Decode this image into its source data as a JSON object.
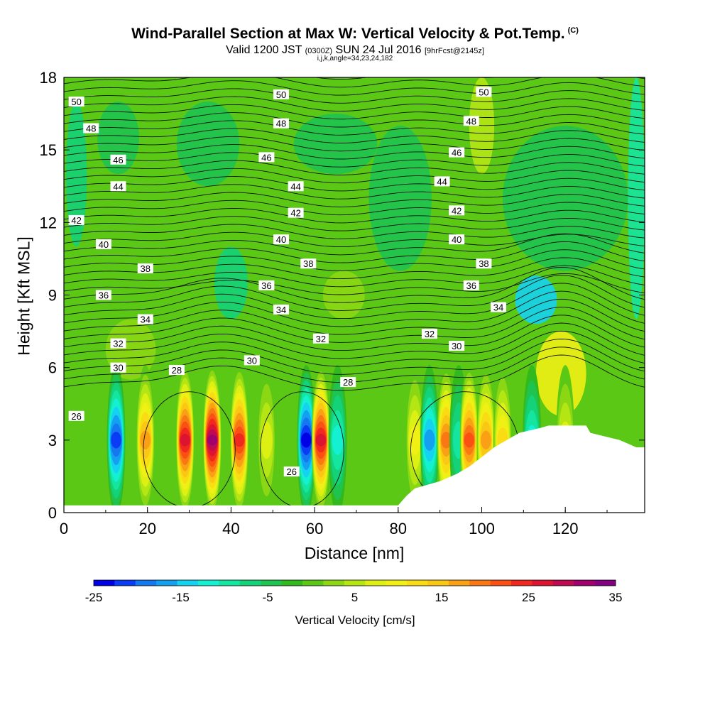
{
  "header": {
    "title": "Wind-Parallel Section at Max W: Vertical Velocity & Pot.Temp.",
    "copyright": "(C)",
    "subtitle_a": "Valid 1200 JST",
    "subtitle_b": "(0300Z)",
    "subtitle_c": "SUN 24 Jul 2016",
    "subtitle_d": "[9hrFcst@2145z]",
    "indices": "i,j,k,angle=34,23,24,182"
  },
  "chart_data": {
    "type": "heatmap",
    "xlabel": "Distance [nm]",
    "ylabel": "Height [Kft MSL]",
    "xlim": [
      0,
      139
    ],
    "ylim": [
      0,
      18
    ],
    "xticks": [
      0,
      20,
      40,
      60,
      80,
      100,
      120
    ],
    "yticks": [
      0,
      3,
      6,
      9,
      12,
      15,
      18
    ],
    "grid": false,
    "colorbar": {
      "label": "Vertical Velocity [cm/s]",
      "min": -25,
      "max": 35,
      "step": 2.5,
      "tick_labels": [
        -25,
        -15,
        -5,
        5,
        15,
        25,
        35
      ],
      "colors": [
        "#0000e6",
        "#0a3cf5",
        "#1478f0",
        "#14a0f0",
        "#14d2f0",
        "#14f0d2",
        "#14e6a0",
        "#14d278",
        "#1ec350",
        "#32b91e",
        "#5ac814",
        "#8cd714",
        "#b4e614",
        "#dcf014",
        "#f0f014",
        "#fadc14",
        "#fac814",
        "#faa014",
        "#fa7814",
        "#fa5014",
        "#f0281e",
        "#dc1432",
        "#be0a50",
        "#a0006e",
        "#820082"
      ]
    },
    "theta_contours": [
      26,
      28,
      30,
      32,
      34,
      36,
      38,
      40,
      42,
      44,
      46,
      48,
      50
    ],
    "contour_labels": [
      {
        "text": "50",
        "x": 3,
        "y": 17.0
      },
      {
        "text": "48",
        "x": 6.5,
        "y": 15.9
      },
      {
        "text": "46",
        "x": 13,
        "y": 14.6
      },
      {
        "text": "44",
        "x": 13,
        "y": 13.5
      },
      {
        "text": "42",
        "x": 3,
        "y": 12.1
      },
      {
        "text": "40",
        "x": 9.5,
        "y": 11.1
      },
      {
        "text": "38",
        "x": 19.5,
        "y": 10.1
      },
      {
        "text": "36",
        "x": 9.5,
        "y": 9.0
      },
      {
        "text": "34",
        "x": 19.5,
        "y": 8.0
      },
      {
        "text": "32",
        "x": 13,
        "y": 7.0
      },
      {
        "text": "30",
        "x": 13,
        "y": 6.0
      },
      {
        "text": "28",
        "x": 27,
        "y": 5.9
      },
      {
        "text": "26",
        "x": 3,
        "y": 4.0
      },
      {
        "text": "50",
        "x": 52,
        "y": 17.3
      },
      {
        "text": "48",
        "x": 52,
        "y": 16.1
      },
      {
        "text": "46",
        "x": 48.5,
        "y": 14.7
      },
      {
        "text": "44",
        "x": 55.5,
        "y": 13.5
      },
      {
        "text": "42",
        "x": 55.5,
        "y": 12.4
      },
      {
        "text": "40",
        "x": 52,
        "y": 11.3
      },
      {
        "text": "38",
        "x": 58.5,
        "y": 10.3
      },
      {
        "text": "36",
        "x": 48.5,
        "y": 9.4
      },
      {
        "text": "34",
        "x": 52,
        "y": 8.4
      },
      {
        "text": "32",
        "x": 61.5,
        "y": 7.2
      },
      {
        "text": "30",
        "x": 45,
        "y": 6.3
      },
      {
        "text": "28",
        "x": 68,
        "y": 5.4
      },
      {
        "text": "26",
        "x": 54.5,
        "y": 1.7
      },
      {
        "text": "50",
        "x": 100.5,
        "y": 17.4
      },
      {
        "text": "48",
        "x": 97.5,
        "y": 16.2
      },
      {
        "text": "46",
        "x": 94,
        "y": 14.9
      },
      {
        "text": "44",
        "x": 90.5,
        "y": 13.7
      },
      {
        "text": "42",
        "x": 94,
        "y": 12.5
      },
      {
        "text": "40",
        "x": 94,
        "y": 11.3
      },
      {
        "text": "38",
        "x": 100.5,
        "y": 10.3
      },
      {
        "text": "36",
        "x": 97.5,
        "y": 9.4
      },
      {
        "text": "34",
        "x": 104,
        "y": 8.5
      },
      {
        "text": "32",
        "x": 87.5,
        "y": 7.4
      },
      {
        "text": "30",
        "x": 94,
        "y": 6.9
      }
    ],
    "terrain_height_kft": [
      [
        0,
        0.3
      ],
      [
        80,
        0.3
      ],
      [
        82,
        0.7
      ],
      [
        84,
        1.0
      ],
      [
        90,
        1.3
      ],
      [
        94,
        1.6
      ],
      [
        97,
        1.9
      ],
      [
        100,
        2.3
      ],
      [
        103,
        2.7
      ],
      [
        106,
        3.0
      ],
      [
        109,
        3.3
      ],
      [
        114,
        3.5
      ],
      [
        116,
        3.6
      ],
      [
        125,
        3.6
      ],
      [
        126,
        3.3
      ],
      [
        133,
        3.0
      ],
      [
        137,
        2.7
      ],
      [
        139,
        2.7
      ]
    ],
    "updraft_bands": [
      {
        "x": 12.5,
        "w": -22
      },
      {
        "x": 19.5,
        "w": 20
      },
      {
        "x": 29,
        "w": 30
      },
      {
        "x": 35.5,
        "w": 35
      },
      {
        "x": 42,
        "w": 28
      },
      {
        "x": 48.5,
        "w": 10
      },
      {
        "x": 58,
        "w": -25
      },
      {
        "x": 61.5,
        "w": 30
      },
      {
        "x": 65.5,
        "w": -12
      },
      {
        "x": 84,
        "w": 12
      },
      {
        "x": 87.5,
        "w": -18
      },
      {
        "x": 91.5,
        "w": 22
      },
      {
        "x": 94.5,
        "w": -10
      },
      {
        "x": 97,
        "w": 26
      },
      {
        "x": 101,
        "w": 20
      },
      {
        "x": 105,
        "w": 14
      },
      {
        "x": 112,
        "w": -12
      },
      {
        "x": 120,
        "w": 9
      }
    ]
  }
}
